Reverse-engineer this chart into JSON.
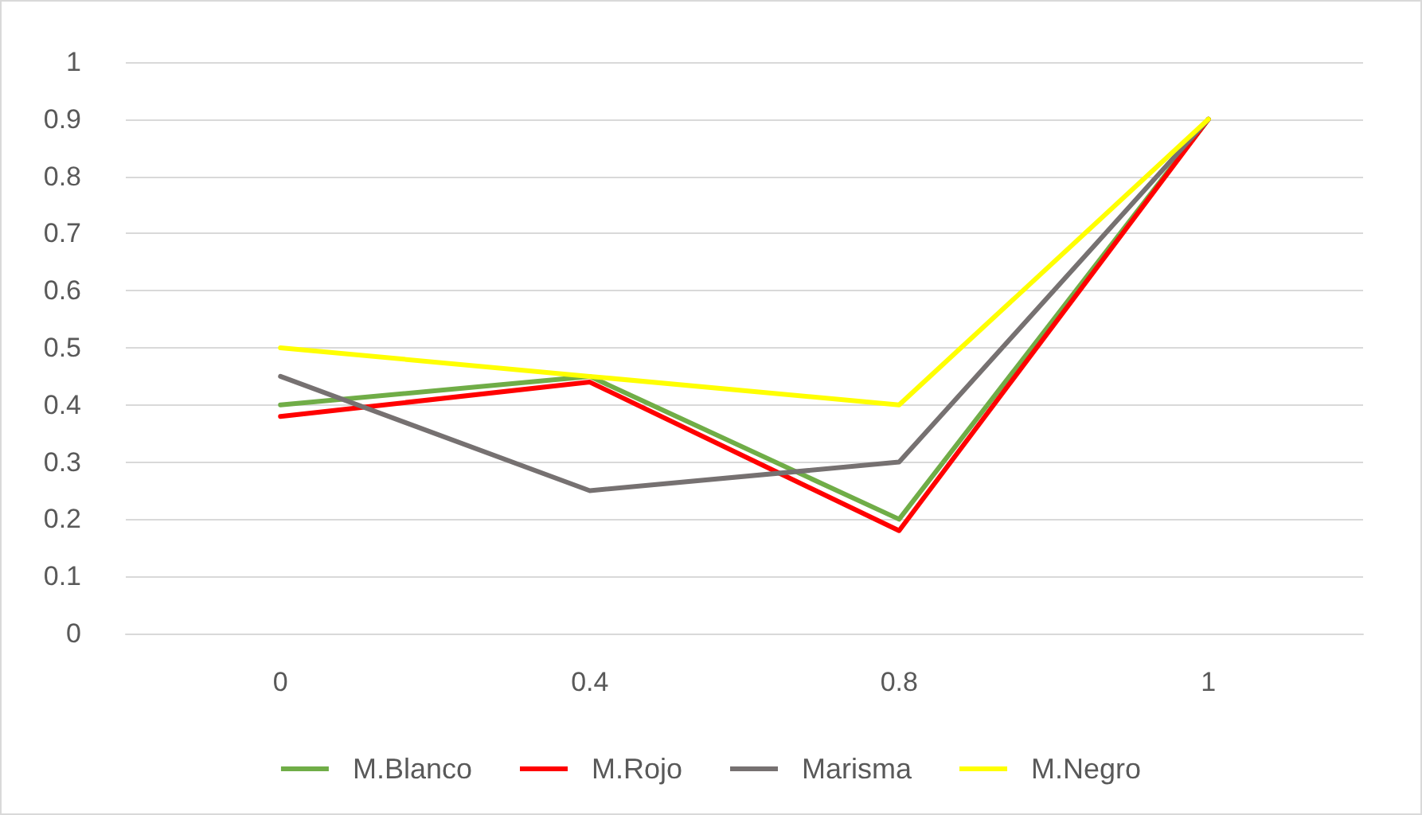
{
  "chart_data": {
    "type": "line",
    "categories": [
      "0",
      "0.4",
      "0.8",
      "1"
    ],
    "series": [
      {
        "name": "M.Blanco",
        "color": "#70ad47",
        "values": [
          0.4,
          0.45,
          0.2,
          0.9
        ]
      },
      {
        "name": "M.Rojo",
        "color": "#ff0000",
        "values": [
          0.38,
          0.44,
          0.18,
          0.9
        ]
      },
      {
        "name": "Marisma",
        "color": "#767171",
        "values": [
          0.45,
          0.25,
          0.3,
          0.9
        ]
      },
      {
        "name": "M.Negro",
        "color": "#ffff00",
        "values": [
          0.5,
          0.45,
          0.4,
          0.9
        ]
      }
    ],
    "ylim": [
      0,
      1
    ],
    "yticks": [
      0,
      0.1,
      0.2,
      0.3,
      0.4,
      0.5,
      0.6,
      0.7,
      0.8,
      0.9,
      1
    ],
    "grid": "y",
    "legend": "bottom",
    "marker": "none",
    "line_style": "solid"
  }
}
